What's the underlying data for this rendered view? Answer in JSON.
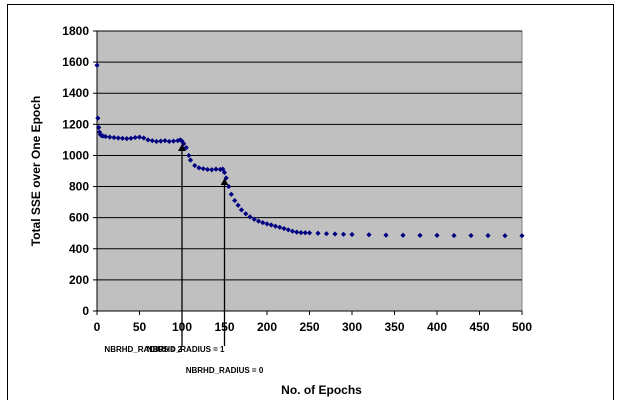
{
  "chart_data": {
    "type": "scatter",
    "title": "",
    "xlabel": "No. of Epochs",
    "ylabel": "Total SSE over One Epoch",
    "xlim": [
      0,
      500
    ],
    "ylim": [
      0,
      1800
    ],
    "x_ticks": [
      0,
      50,
      100,
      150,
      200,
      250,
      300,
      350,
      400,
      450,
      500
    ],
    "y_ticks": [
      0,
      200,
      400,
      600,
      800,
      1000,
      1200,
      1400,
      1600,
      1800
    ],
    "grid": "horizontal",
    "legend": "none",
    "plot_background": "#c0c0c0",
    "marker_color": "#000080",
    "series": [
      {
        "points": [
          [
            0,
            1580
          ],
          [
            1,
            1240
          ],
          [
            2,
            1180
          ],
          [
            3,
            1150
          ],
          [
            4,
            1135
          ],
          [
            5,
            1128
          ],
          [
            7,
            1125
          ],
          [
            10,
            1122
          ],
          [
            15,
            1118
          ],
          [
            20,
            1115
          ],
          [
            25,
            1112
          ],
          [
            30,
            1110
          ],
          [
            35,
            1108
          ],
          [
            40,
            1110
          ],
          [
            45,
            1115
          ],
          [
            50,
            1118
          ],
          [
            55,
            1112
          ],
          [
            60,
            1100
          ],
          [
            65,
            1095
          ],
          [
            70,
            1090
          ],
          [
            75,
            1092
          ],
          [
            80,
            1095
          ],
          [
            85,
            1090
          ],
          [
            90,
            1092
          ],
          [
            95,
            1095
          ],
          [
            98,
            1100
          ],
          [
            100,
            1092
          ],
          [
            102,
            1075
          ],
          [
            105,
            1050
          ],
          [
            108,
            1000
          ],
          [
            110,
            970
          ],
          [
            115,
            935
          ],
          [
            120,
            920
          ],
          [
            125,
            915
          ],
          [
            130,
            910
          ],
          [
            135,
            908
          ],
          [
            140,
            912
          ],
          [
            145,
            910
          ],
          [
            148,
            912
          ],
          [
            150,
            890
          ],
          [
            152,
            855
          ],
          [
            155,
            800
          ],
          [
            158,
            750
          ],
          [
            162,
            710
          ],
          [
            166,
            680
          ],
          [
            170,
            650
          ],
          [
            175,
            625
          ],
          [
            180,
            605
          ],
          [
            185,
            590
          ],
          [
            190,
            578
          ],
          [
            195,
            568
          ],
          [
            200,
            560
          ],
          [
            205,
            553
          ],
          [
            210,
            545
          ],
          [
            215,
            538
          ],
          [
            220,
            530
          ],
          [
            225,
            522
          ],
          [
            230,
            513
          ],
          [
            235,
            507
          ],
          [
            240,
            504
          ],
          [
            245,
            503
          ],
          [
            250,
            502
          ],
          [
            260,
            500
          ],
          [
            270,
            497
          ],
          [
            280,
            495
          ],
          [
            290,
            493
          ],
          [
            300,
            492
          ],
          [
            320,
            490
          ],
          [
            340,
            488
          ],
          [
            360,
            487
          ],
          [
            380,
            486
          ],
          [
            400,
            486
          ],
          [
            420,
            485
          ],
          [
            440,
            485
          ],
          [
            460,
            485
          ],
          [
            480,
            484
          ],
          [
            500,
            484
          ]
        ]
      }
    ],
    "annotations": [
      {
        "text": "NBRHD_RADIUS = 2",
        "x": 100,
        "y": 1080,
        "label_row": 1,
        "label_align": "end"
      },
      {
        "text": "NBRHD_RADIUS = 1",
        "x": 150,
        "y": 860,
        "label_row": 1,
        "label_align": "end"
      },
      {
        "text": "NBRHD_RADIUS = 0",
        "x": 150,
        "y": 860,
        "label_row": 2,
        "label_align": "middle"
      }
    ]
  }
}
